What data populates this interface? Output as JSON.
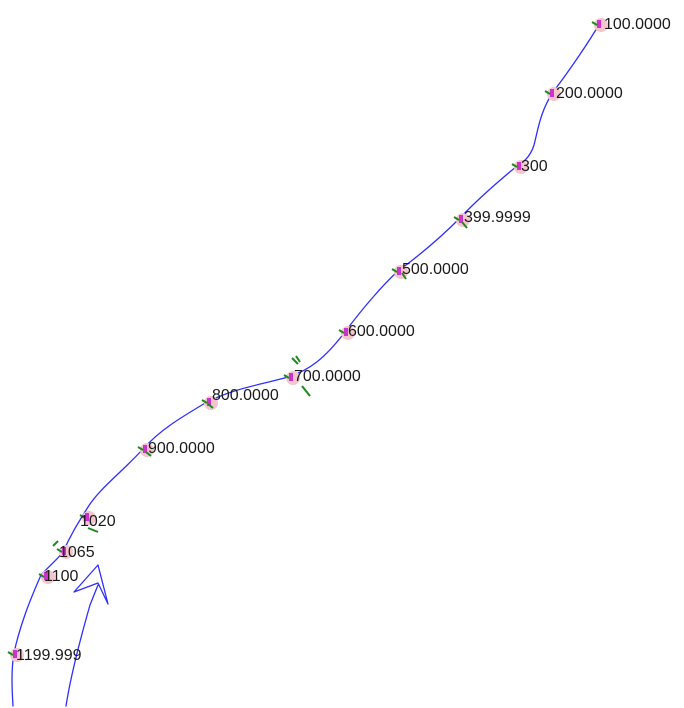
{
  "colors": {
    "line": "#2f2fff",
    "marker_magenta": "#cc33cc",
    "marker_pink": "#f2c6cc",
    "marker_green": "#1e8a1e",
    "text": "#1a1a1a"
  },
  "stations": [
    {
      "id": "s100",
      "label": "100.0000"
    },
    {
      "id": "s200",
      "label": "200.0000"
    },
    {
      "id": "s300",
      "label": "300"
    },
    {
      "id": "s400",
      "label": "399.9999"
    },
    {
      "id": "s500",
      "label": "500.0000"
    },
    {
      "id": "s600",
      "label": "600.0000"
    },
    {
      "id": "s700",
      "label": "700.0000"
    },
    {
      "id": "s800",
      "label": "800.0000"
    },
    {
      "id": "s900",
      "label": "900.0000"
    },
    {
      "id": "s1020",
      "label": "1020"
    },
    {
      "id": "s1065",
      "label": "1065"
    },
    {
      "id": "s1100",
      "label": "1100"
    },
    {
      "id": "s1200",
      "label": "1199.999"
    }
  ]
}
